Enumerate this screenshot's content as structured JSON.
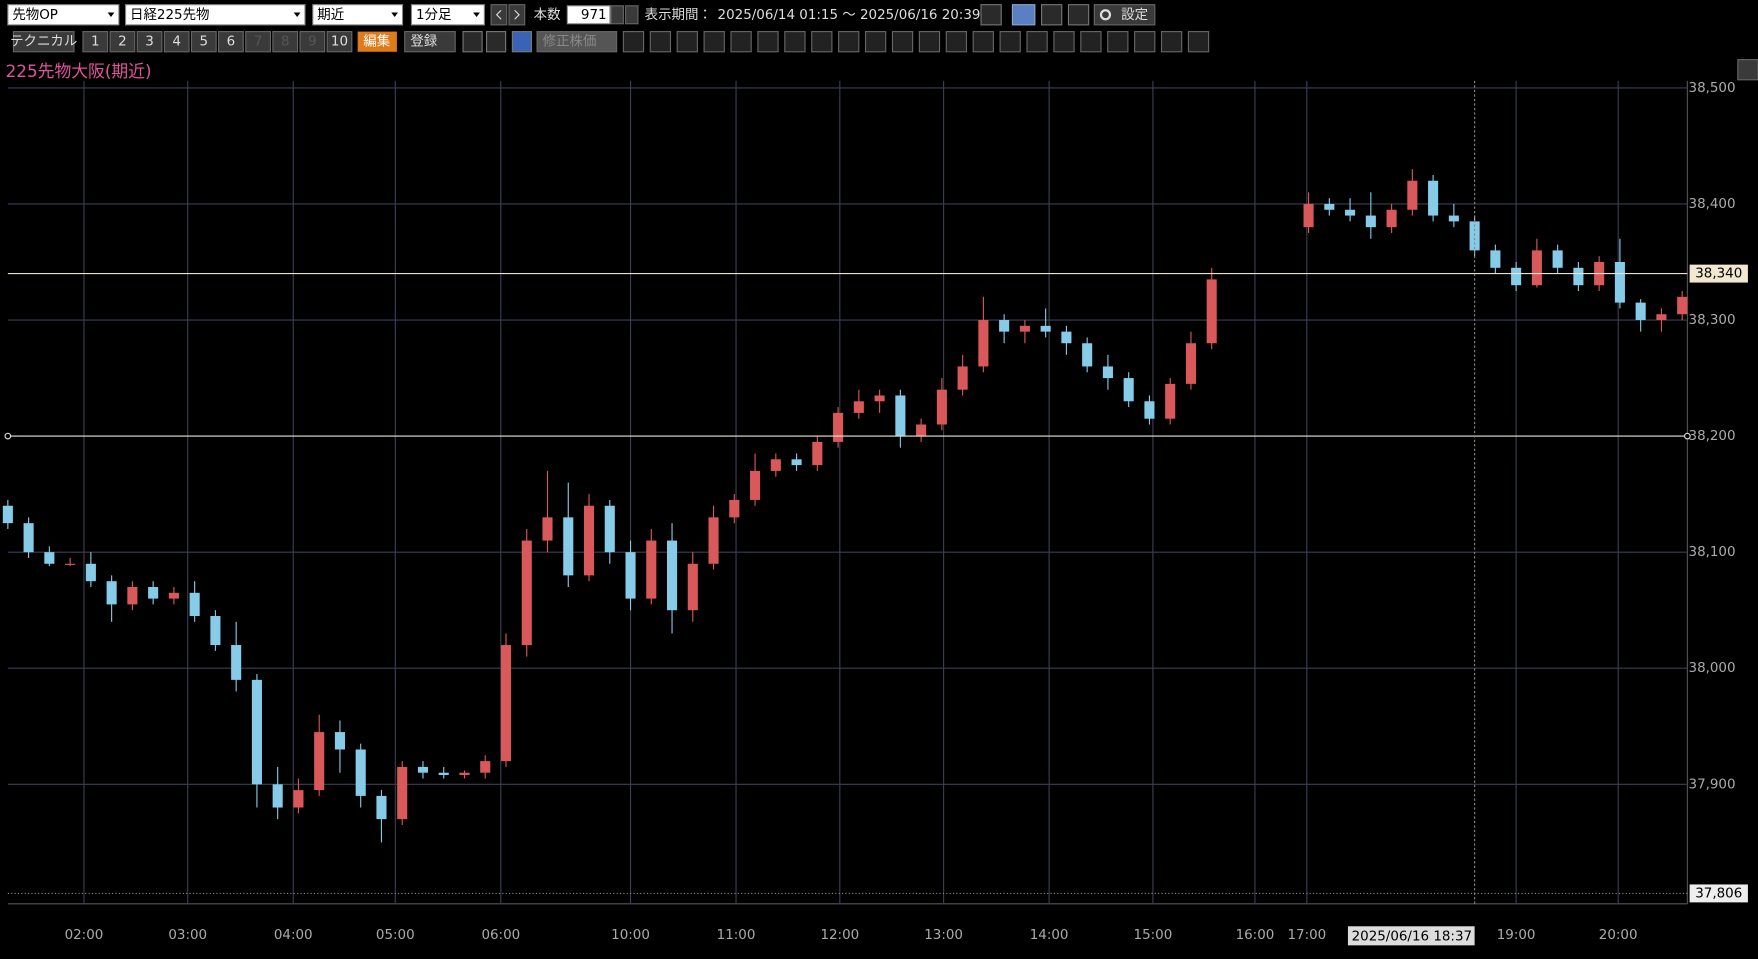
{
  "toolbar": {
    "selects": [
      "先物OP",
      "日経225先物",
      "期近",
      "1分足"
    ],
    "count_label": "本数",
    "count": "971",
    "period_label": "表示期間：",
    "period": "2025/06/14 01:15 ～ 2025/06/16 20:39",
    "settings": "設定",
    "technical": "テクニカル",
    "numbers": [
      "1",
      "2",
      "3",
      "4",
      "5",
      "6",
      "7",
      "8",
      "9",
      "10"
    ],
    "edit": "編集",
    "register": "登録",
    "adjusted": "修正株価"
  },
  "chart_data": {
    "type": "candlestick",
    "title": "225先物大阪(期近)",
    "x": [
      0,
      12,
      24,
      36,
      48,
      60,
      72,
      84,
      96,
      108,
      120,
      132,
      144,
      156,
      168,
      180,
      192,
      204,
      216,
      228,
      240,
      252,
      264,
      276,
      288,
      300,
      312,
      324,
      336,
      348,
      360,
      372,
      384,
      396,
      408,
      420,
      432,
      444,
      456,
      468,
      480,
      492,
      504,
      516,
      528,
      540,
      552,
      564,
      576,
      588,
      600,
      612,
      624,
      636,
      648,
      660,
      672,
      684,
      696,
      752,
      764,
      776,
      788,
      800,
      812,
      824,
      836,
      848,
      860,
      872,
      884,
      896,
      908,
      920,
      932,
      944,
      956,
      968
    ],
    "open": [
      38140,
      38125,
      38100,
      38090,
      38090,
      38075,
      38055,
      38070,
      38060,
      38065,
      38045,
      38020,
      37990,
      37900,
      37880,
      37895,
      37945,
      37930,
      37890,
      37870,
      37915,
      37910,
      37908,
      37910,
      37920,
      38020,
      38110,
      38130,
      38080,
      38140,
      38100,
      38060,
      38110,
      38050,
      38090,
      38130,
      38145,
      38170,
      38180,
      38175,
      38195,
      38220,
      38230,
      38235,
      38200,
      38210,
      38240,
      38260,
      38300,
      38290,
      38295,
      38290,
      38280,
      38260,
      38250,
      38230,
      38215,
      38245,
      38280,
      38380,
      38400,
      38395,
      38390,
      38380,
      38395,
      38420,
      38390,
      38385,
      38360,
      38345,
      38330,
      38360,
      38345,
      38330,
      38350,
      38315,
      38300,
      38305
    ],
    "high": [
      38145,
      38130,
      38105,
      38095,
      38100,
      38080,
      38075,
      38075,
      38070,
      38075,
      38050,
      38040,
      37995,
      37915,
      37905,
      37960,
      37955,
      37935,
      37895,
      37920,
      37920,
      37915,
      37912,
      37925,
      38030,
      38120,
      38170,
      38160,
      38150,
      38145,
      38110,
      38120,
      38125,
      38100,
      38140,
      38150,
      38185,
      38185,
      38185,
      38200,
      38225,
      38240,
      38240,
      38240,
      38215,
      38250,
      38270,
      38320,
      38305,
      38300,
      38310,
      38295,
      38285,
      38270,
      38255,
      38235,
      38250,
      38290,
      38345,
      38410,
      38405,
      38405,
      38410,
      38400,
      38430,
      38425,
      38400,
      38390,
      38365,
      38350,
      38370,
      38365,
      38350,
      38355,
      38370,
      38318,
      38310,
      38325
    ],
    "low": [
      38120,
      38095,
      38088,
      38088,
      38070,
      38040,
      38050,
      38055,
      38055,
      38040,
      38015,
      37980,
      37880,
      37870,
      37875,
      37890,
      37910,
      37880,
      37850,
      37865,
      37905,
      37905,
      37905,
      37905,
      37915,
      38010,
      38100,
      38070,
      38075,
      38090,
      38050,
      38055,
      38030,
      38040,
      38085,
      38125,
      38140,
      38165,
      38170,
      38170,
      38190,
      38215,
      38220,
      38190,
      38195,
      38205,
      38235,
      38255,
      38280,
      38280,
      38285,
      38270,
      38255,
      38240,
      38225,
      38210,
      38210,
      38240,
      38275,
      38375,
      38390,
      38385,
      38370,
      38375,
      38390,
      38385,
      38380,
      38355,
      38340,
      38325,
      38328,
      38340,
      38325,
      38325,
      38310,
      38290,
      38290,
      38300
    ],
    "close": [
      38125,
      38100,
      38090,
      38090,
      38075,
      38055,
      38070,
      38060,
      38065,
      38045,
      38020,
      37990,
      37900,
      37880,
      37895,
      37945,
      37930,
      37890,
      37870,
      37915,
      37910,
      37908,
      37910,
      37920,
      38020,
      38110,
      38130,
      38080,
      38140,
      38100,
      38060,
      38110,
      38050,
      38090,
      38130,
      38145,
      38170,
      38180,
      38175,
      38195,
      38220,
      38230,
      38235,
      38200,
      38210,
      38240,
      38260,
      38300,
      38290,
      38295,
      38290,
      38280,
      38260,
      38250,
      38230,
      38215,
      38245,
      38280,
      38335,
      38400,
      38395,
      38390,
      38380,
      38395,
      38420,
      38390,
      38385,
      38360,
      38345,
      38330,
      38360,
      38345,
      38330,
      38350,
      38315,
      38300,
      38305,
      38320
    ],
    "up_color": "#d9595a",
    "down_color": "#86cbe8",
    "xlim": [
      0,
      971
    ],
    "xticks": [
      {
        "value": 44,
        "label": "02:00"
      },
      {
        "value": 104,
        "label": "03:00"
      },
      {
        "value": 165,
        "label": "04:00"
      },
      {
        "value": 224,
        "label": "05:00"
      },
      {
        "value": 285,
        "label": "06:00"
      },
      {
        "value": 360,
        "label": "10:00"
      },
      {
        "value": 421,
        "label": "11:00"
      },
      {
        "value": 481,
        "label": "12:00"
      },
      {
        "value": 541,
        "label": "13:00"
      },
      {
        "value": 602,
        "label": "14:00"
      },
      {
        "value": 662,
        "label": "15:00"
      },
      {
        "value": 721,
        "label": "16:00"
      },
      {
        "value": 751,
        "label": "17:00"
      },
      {
        "value": 872,
        "label": "19:00"
      },
      {
        "value": 931,
        "label": "20:00"
      }
    ],
    "ylim": [
      37797,
      38506
    ],
    "yticks": [
      {
        "value": 37900,
        "label": "37,900"
      },
      {
        "value": 38000,
        "label": "38,000"
      },
      {
        "value": 38100,
        "label": "38,100"
      },
      {
        "value": 38200,
        "label": "38,200"
      },
      {
        "value": 38300,
        "label": "38,300"
      },
      {
        "value": 38400,
        "label": "38,400"
      },
      {
        "value": 38500,
        "label": "38,500"
      }
    ],
    "grid": true,
    "hlines": [
      {
        "value": 38340,
        "label": "38,340",
        "style": "solid"
      },
      {
        "value": 38200,
        "style": "solid"
      },
      {
        "value": 37806,
        "label": "37,806",
        "style": "dotted"
      }
    ],
    "cursor": {
      "value": 848,
      "label": "2025/06/16 18:37"
    }
  }
}
